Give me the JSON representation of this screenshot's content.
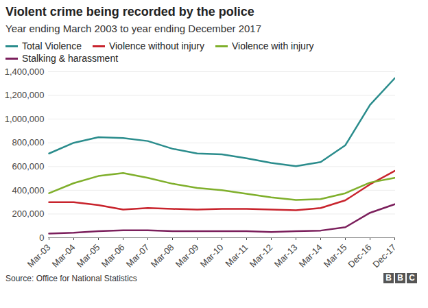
{
  "chart_data": {
    "type": "line",
    "title": "Violent crime being recorded by the police",
    "subtitle": "Year ending March 2003 to year ending December 2017",
    "source": "Source: Office for National Statistics",
    "logo": "BBC",
    "categories": [
      "Mar-03",
      "Mar-04",
      "Mar-05",
      "Mar-06",
      "Mar-07",
      "Mar-08",
      "Mar-09",
      "Mar-10",
      "Mar-11",
      "Mar-12",
      "Mar-13",
      "Mar-14",
      "Mar-15",
      "Dec-16",
      "Dec-17"
    ],
    "series": [
      {
        "name": "Total Violence",
        "color": "#2a8c8c",
        "values": [
          710000,
          800000,
          848000,
          840000,
          815000,
          750000,
          710000,
          703000,
          670000,
          630000,
          603000,
          638000,
          780000,
          1120000,
          1345000
        ]
      },
      {
        "name": "Violence without injury",
        "color": "#c8232c",
        "values": [
          300000,
          300000,
          275000,
          237000,
          250000,
          243000,
          237000,
          243000,
          243000,
          237000,
          232000,
          250000,
          315000,
          450000,
          563000
        ]
      },
      {
        "name": "Violence with injury",
        "color": "#7faf2b",
        "values": [
          375000,
          460000,
          520000,
          545000,
          505000,
          455000,
          420000,
          400000,
          370000,
          340000,
          318000,
          325000,
          375000,
          465000,
          505000
        ]
      },
      {
        "name": "Stalking & harassment",
        "color": "#7b1f5c",
        "values": [
          35000,
          42000,
          55000,
          62000,
          62000,
          55000,
          55000,
          55000,
          55000,
          48000,
          55000,
          60000,
          88000,
          210000,
          282000
        ]
      }
    ],
    "ylim": [
      0,
      1400000
    ],
    "yticks": [
      0,
      {
        "value": 200000,
        "label": "200,000"
      },
      {
        "value": 400000,
        "label": "400,000"
      },
      {
        "value": 600000,
        "label": "600,000"
      },
      {
        "value": 800000,
        "label": "800,000"
      },
      {
        "value": 1000000,
        "label": "1,000,000"
      },
      {
        "value": 1200000,
        "label": "1,200,000"
      },
      {
        "value": 1400000,
        "label": "1,400,000"
      }
    ],
    "grid": true,
    "legend": "top-left"
  }
}
